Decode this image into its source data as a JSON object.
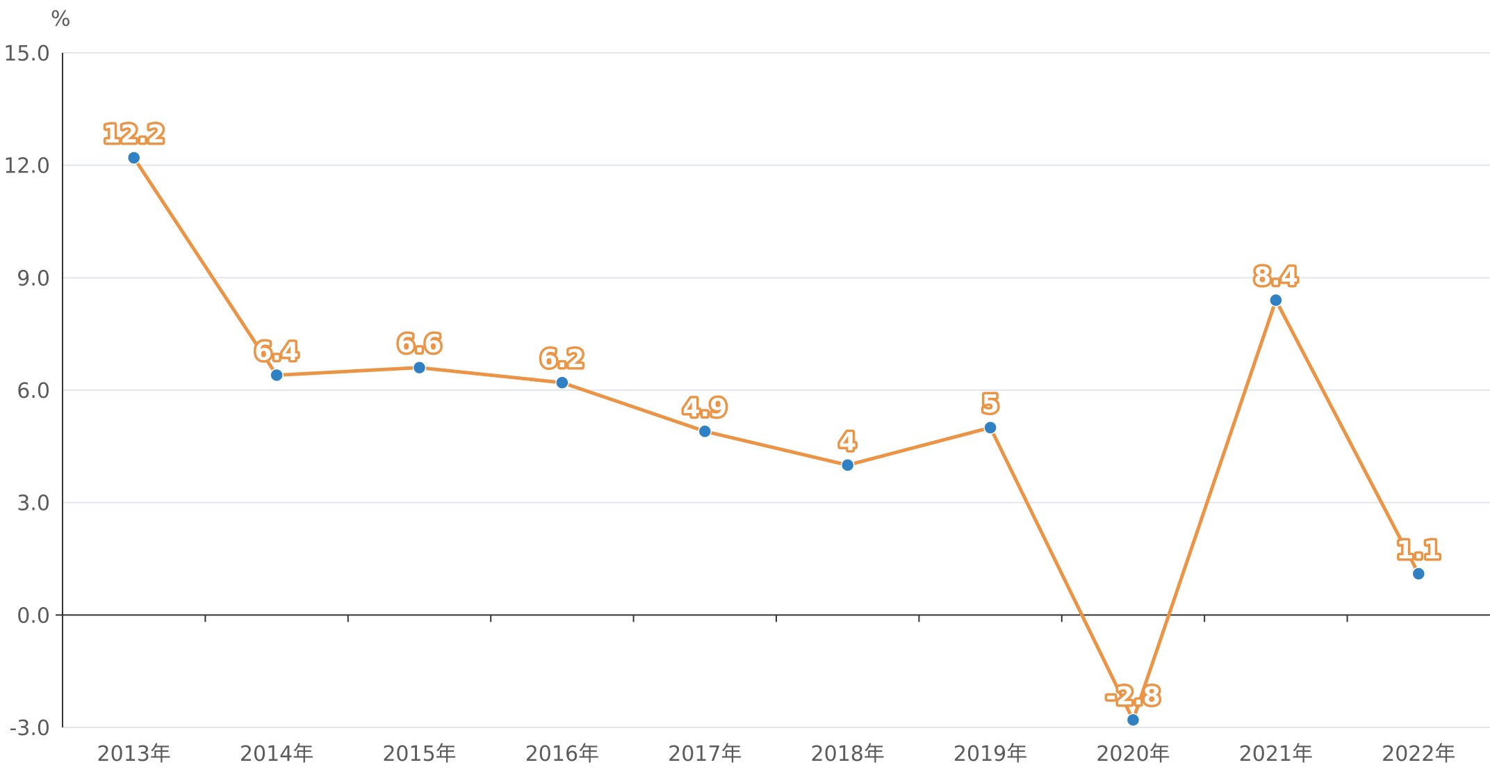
{
  "chart_data": {
    "type": "line",
    "title": "",
    "xlabel": "",
    "ylabel": "%",
    "categories": [
      "2013年",
      "2014年",
      "2015年",
      "2016年",
      "2017年",
      "2018年",
      "2019年",
      "2020年",
      "2021年",
      "2022年"
    ],
    "series": [
      {
        "values": [
          12.2,
          6.4,
          6.6,
          6.2,
          4.9,
          4,
          5,
          -2.8,
          8.4,
          1.1
        ]
      }
    ],
    "data_labels": [
      "12.2",
      "6.4",
      "6.6",
      "6.2",
      "4.9",
      "4",
      "5",
      "-2.8",
      "8.4",
      "1.1"
    ],
    "ylim": [
      -3,
      15
    ],
    "yticks": [
      -3,
      0,
      3,
      6,
      9,
      12,
      15
    ],
    "ytick_labels": [
      "-3.0",
      "0.0",
      "3.0",
      "6.0",
      "9.0",
      "12.0",
      "15.0"
    ],
    "grid": true,
    "legend": "none",
    "colors": {
      "line": "#ec9445",
      "marker": "#2f81c4",
      "grid": "#e3e5ee",
      "axis": "#333333",
      "text": "#5b5b5b"
    }
  }
}
